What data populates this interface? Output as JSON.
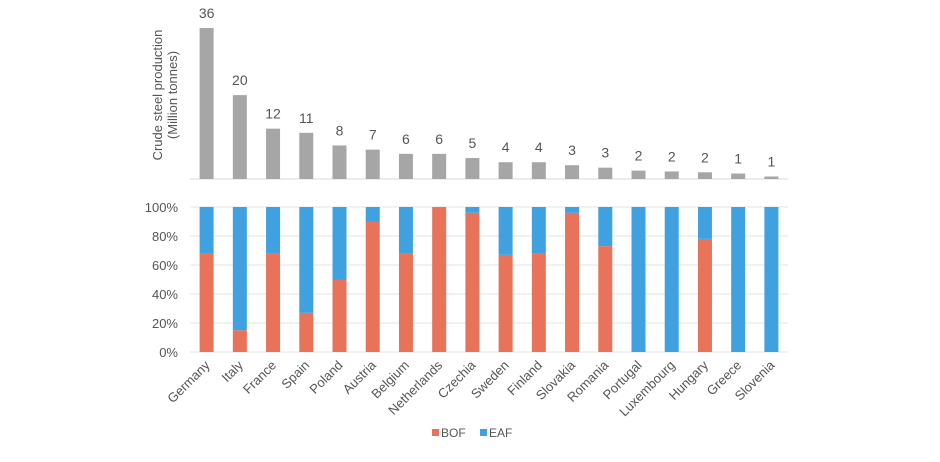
{
  "chart_data": [
    {
      "type": "bar",
      "panel": "top",
      "ylabel": "Crude steel production",
      "ylabel_unit": "(Million tonnes)",
      "categories": [
        "Germany",
        "Italy",
        "France",
        "Spain",
        "Poland",
        "Austria",
        "Belgium",
        "Netherlands",
        "Czechia",
        "Sweden",
        "Finland",
        "Slovakia",
        "Romania",
        "Portugal",
        "Luxembourg",
        "Hungary",
        "Greece",
        "Slovenia"
      ],
      "values": [
        36,
        20,
        12,
        11,
        8,
        7,
        6,
        6,
        5,
        4,
        4,
        3,
        3,
        2,
        2,
        2,
        1,
        1
      ],
      "display_values": [
        36,
        20,
        12,
        11,
        8,
        7,
        6,
        6,
        5,
        4,
        4,
        3,
        3,
        2,
        2,
        2,
        1,
        1
      ],
      "plot_values": [
        36,
        20,
        12,
        11,
        8,
        7,
        6,
        6,
        5,
        4,
        4,
        3.3,
        2.7,
        2,
        1.8,
        1.6,
        1.3,
        0.6
      ],
      "ylim": [
        0,
        36
      ],
      "colors": {
        "bar": "#a6a6a6"
      }
    },
    {
      "type": "bar",
      "stacked": true,
      "panel": "bottom",
      "categories": [
        "Germany",
        "Italy",
        "France",
        "Spain",
        "Poland",
        "Austria",
        "Belgium",
        "Netherlands",
        "Czechia",
        "Sweden",
        "Finland",
        "Slovakia",
        "Romania",
        "Portugal",
        "Luxembourg",
        "Hungary",
        "Greece",
        "Slovenia"
      ],
      "series": [
        {
          "name": "BOF",
          "color": "#e8735a",
          "values": [
            68,
            15,
            68,
            27,
            50,
            90,
            68,
            100,
            96,
            67,
            68,
            96,
            73,
            0,
            0,
            78,
            0,
            0
          ]
        },
        {
          "name": "EAF",
          "color": "#3fa1e0",
          "values": [
            32,
            85,
            32,
            73,
            50,
            10,
            32,
            0,
            4,
            33,
            32,
            4,
            27,
            100,
            100,
            22,
            100,
            100
          ]
        }
      ],
      "yticks": [
        "0%",
        "20%",
        "40%",
        "60%",
        "80%",
        "100%"
      ],
      "ylim": [
        0,
        100
      ],
      "legend_position": "bottom-center",
      "grid": true
    }
  ]
}
